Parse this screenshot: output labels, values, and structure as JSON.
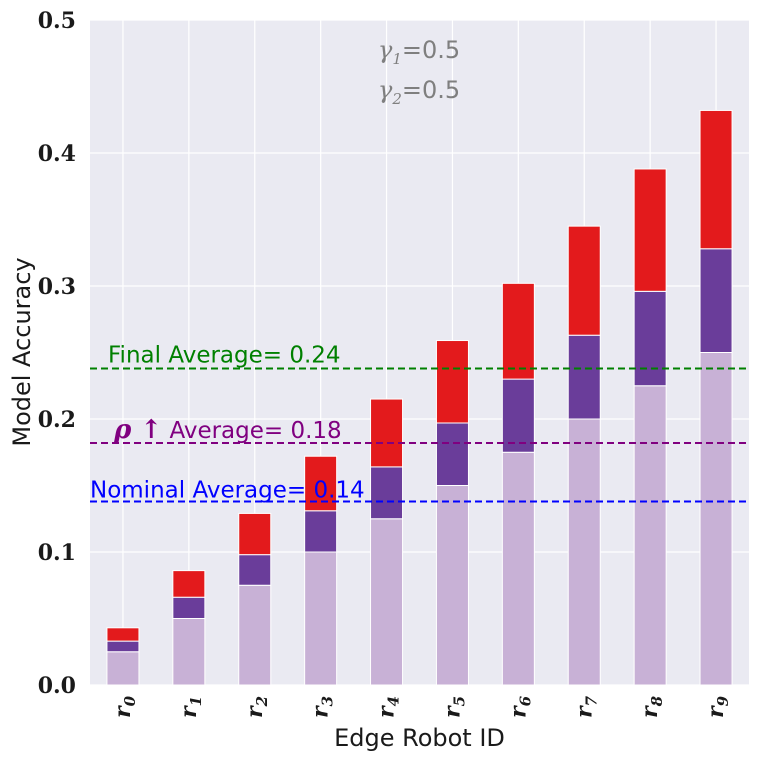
{
  "chart_data": {
    "type": "bar",
    "stacked": true,
    "categories": [
      "r0",
      "r1",
      "r2",
      "r3",
      "r4",
      "r5",
      "r6",
      "r7",
      "r8",
      "r9"
    ],
    "category_labels": [
      {
        "base": "r",
        "sub": "0"
      },
      {
        "base": "r",
        "sub": "1"
      },
      {
        "base": "r",
        "sub": "2"
      },
      {
        "base": "r",
        "sub": "3"
      },
      {
        "base": "r",
        "sub": "4"
      },
      {
        "base": "r",
        "sub": "5"
      },
      {
        "base": "r",
        "sub": "6"
      },
      {
        "base": "r",
        "sub": "7"
      },
      {
        "base": "r",
        "sub": "8"
      },
      {
        "base": "r",
        "sub": "9"
      }
    ],
    "series": [
      {
        "color": "#c8b1d6",
        "values": [
          0.025,
          0.05,
          0.075,
          0.1,
          0.125,
          0.15,
          0.175,
          0.2,
          0.225,
          0.25
        ]
      },
      {
        "color": "#6a3d9a",
        "values": [
          0.008,
          0.016,
          0.023,
          0.031,
          0.039,
          0.047,
          0.055,
          0.063,
          0.071,
          0.078
        ]
      },
      {
        "color": "#e31a1c",
        "values": [
          0.01,
          0.02,
          0.031,
          0.041,
          0.051,
          0.062,
          0.072,
          0.082,
          0.092,
          0.104
        ]
      }
    ],
    "xlabel": "Edge Robot ID",
    "ylabel": "Model Accuracy",
    "ylim": [
      0,
      0.5
    ],
    "yticks": [
      "0.0",
      "0.1",
      "0.2",
      "0.3",
      "0.4",
      "0.5"
    ],
    "grid": true,
    "reference_lines": [
      {
        "label": "Final Average= 0.24",
        "value": 0.238,
        "color": "#008000"
      },
      {
        "label_symbol": "ρ ↑",
        "label": " Average= 0.18",
        "value": 0.182,
        "color": "#800080"
      },
      {
        "label": "Nominal Average= 0.14",
        "value": 0.138,
        "color": "#0000ff"
      }
    ],
    "annotations": {
      "gamma1": {
        "symbol": "γ",
        "sub": "1",
        "value": "=0.5"
      },
      "gamma2": {
        "symbol": "γ",
        "sub": "2",
        "value": "=0.5"
      }
    },
    "colors": {
      "background": "#eaeaf2",
      "grid": "#ffffff",
      "text_gray": "#7f7f7f"
    }
  }
}
